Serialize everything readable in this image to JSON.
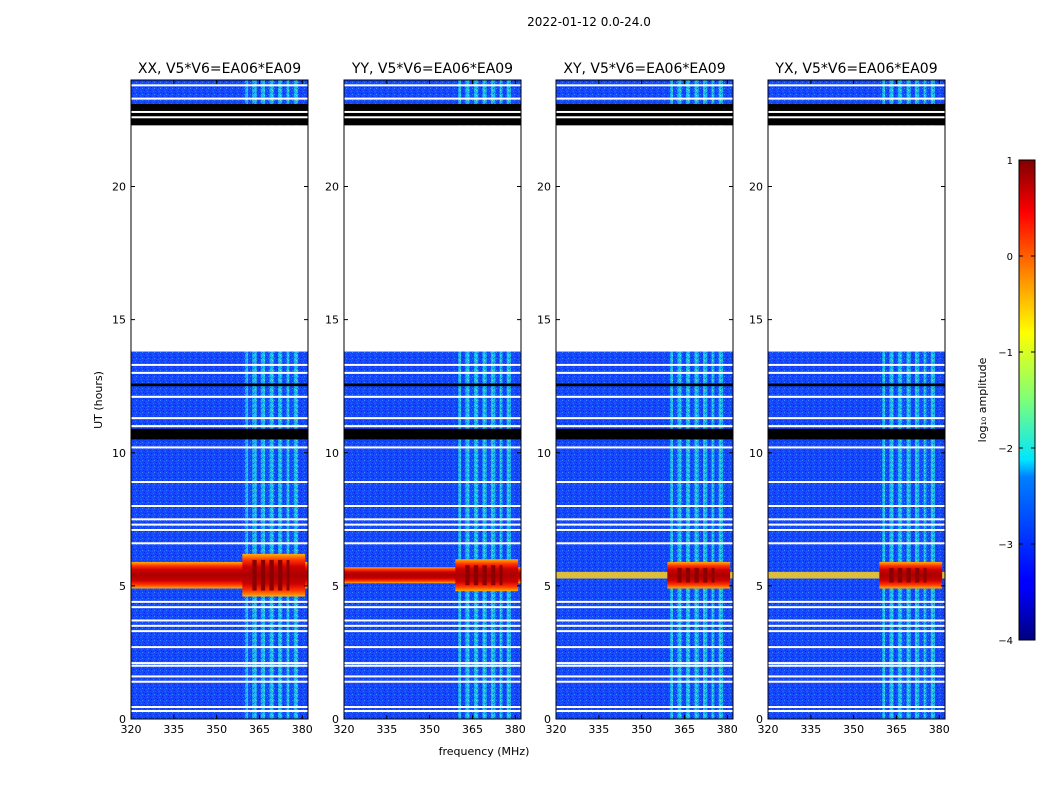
{
  "chart_data": {
    "type": "heatmap",
    "suptitle": "2022-01-12 0.0-24.0",
    "xlabel": "frequency (MHz)",
    "ylabel": "UT (hours)",
    "xlim": [
      320,
      382
    ],
    "ylim": [
      0,
      24
    ],
    "xticks": [
      320,
      335,
      350,
      365,
      380
    ],
    "yticks": [
      0,
      5,
      10,
      15,
      20
    ],
    "panels": [
      {
        "title": "XX, V5*V6=EA06*EA09",
        "strong_band_hours": [
          4.6,
          6.2
        ],
        "band_wide": true
      },
      {
        "title": "YY, V5*V6=EA06*EA09",
        "strong_band_hours": [
          4.8,
          6.0
        ],
        "band_wide": true
      },
      {
        "title": "XY, V5*V6=EA06*EA09",
        "strong_band_hours": [
          4.9,
          5.9
        ],
        "band_wide": false
      },
      {
        "title": "YX, V5*V6=EA06*EA09",
        "strong_band_hours": [
          4.9,
          5.9
        ],
        "band_wide": false
      }
    ],
    "rfi_freq_mhz": [
      [
        360,
        361
      ],
      [
        362.5,
        364
      ],
      [
        365.5,
        367
      ],
      [
        368.5,
        370
      ],
      [
        371.5,
        373
      ],
      [
        374.5,
        375.5
      ],
      [
        377,
        378.5
      ]
    ],
    "flagged_gap_hours": [
      13.8,
      22.3
    ],
    "black_flag_hours": [
      [
        22.3,
        23.1
      ],
      [
        12.5,
        12.6
      ],
      [
        10.5,
        10.9
      ]
    ],
    "white_line_hours": [
      0.3,
      0.45,
      1.4,
      1.6,
      2.0,
      2.1,
      2.7,
      3.3,
      3.5,
      3.7,
      4.2,
      4.4,
      6.6,
      7.1,
      7.3,
      7.5,
      8.0,
      8.9,
      10.2,
      11.0,
      11.3,
      12.1,
      13.0,
      13.3,
      22.6,
      22.8,
      23.3,
      23.8
    ],
    "colorbar": {
      "label": "log₁₀ amplitude",
      "range": [
        -4,
        1
      ],
      "ticks": [
        1,
        0,
        -1,
        -2,
        -3,
        -4
      ],
      "tick_labels": [
        "1",
        "0",
        "−1",
        "−2",
        "−3",
        "−4"
      ]
    }
  }
}
